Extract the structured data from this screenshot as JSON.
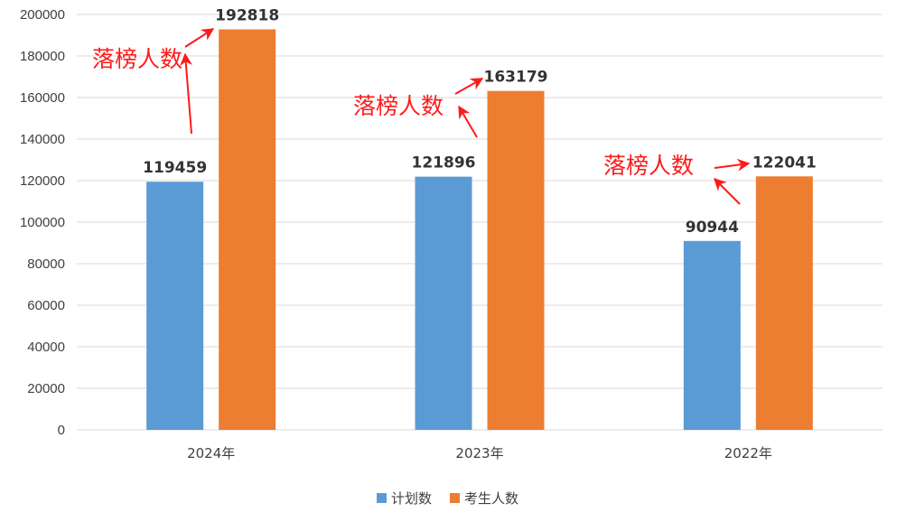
{
  "chart_data": {
    "type": "bar",
    "categories": [
      "2024年",
      "2023年",
      "2022年"
    ],
    "series": [
      {
        "name": "计划数",
        "values": [
          119459,
          121896,
          90944
        ],
        "color": "#5b9bd5"
      },
      {
        "name": "考生人数",
        "values": [
          192818,
          163179,
          122041
        ],
        "color": "#ed7d31"
      }
    ],
    "ylim": [
      0,
      200000
    ],
    "yticks": [
      0,
      20000,
      40000,
      60000,
      80000,
      100000,
      120000,
      140000,
      160000,
      180000,
      200000
    ],
    "grid": true,
    "legend_position": "bottom",
    "annotations": [
      {
        "text": "落榜人数",
        "category": "2024年"
      },
      {
        "text": "落榜人数",
        "category": "2023年"
      },
      {
        "text": "落榜人数",
        "category": "2022年"
      }
    ],
    "annotation_color": "#ff1a1a"
  }
}
